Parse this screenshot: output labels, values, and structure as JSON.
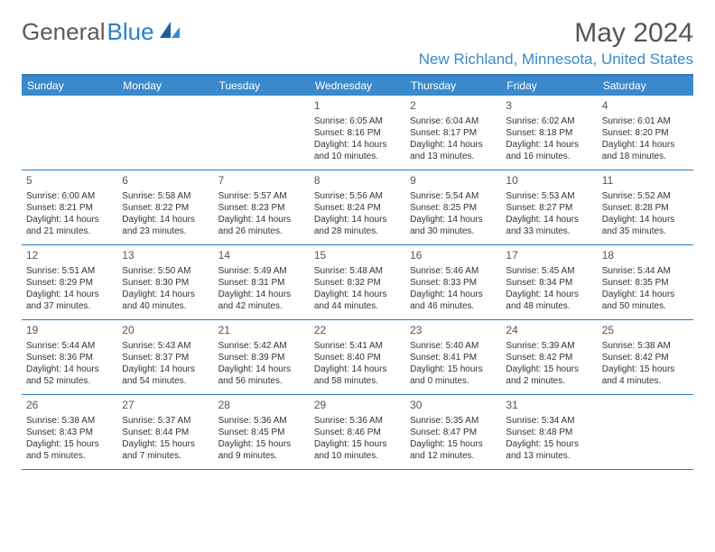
{
  "logo": {
    "part1": "General",
    "part2": "Blue"
  },
  "title": "May 2024",
  "location": "New Richland, Minnesota, United States",
  "colors": {
    "header_bg": "#3a8acb",
    "border": "#2f7cbf",
    "location_text": "#3a8acb",
    "title_text": "#555555",
    "body_text": "#333333",
    "background": "#ffffff"
  },
  "day_headers": [
    "Sunday",
    "Monday",
    "Tuesday",
    "Wednesday",
    "Thursday",
    "Friday",
    "Saturday"
  ],
  "weeks": [
    [
      {
        "day": "",
        "lines": []
      },
      {
        "day": "",
        "lines": []
      },
      {
        "day": "",
        "lines": []
      },
      {
        "day": "1",
        "lines": [
          "Sunrise: 6:05 AM",
          "Sunset: 8:16 PM",
          "Daylight: 14 hours and 10 minutes."
        ]
      },
      {
        "day": "2",
        "lines": [
          "Sunrise: 6:04 AM",
          "Sunset: 8:17 PM",
          "Daylight: 14 hours and 13 minutes."
        ]
      },
      {
        "day": "3",
        "lines": [
          "Sunrise: 6:02 AM",
          "Sunset: 8:18 PM",
          "Daylight: 14 hours and 16 minutes."
        ]
      },
      {
        "day": "4",
        "lines": [
          "Sunrise: 6:01 AM",
          "Sunset: 8:20 PM",
          "Daylight: 14 hours and 18 minutes."
        ]
      }
    ],
    [
      {
        "day": "5",
        "lines": [
          "Sunrise: 6:00 AM",
          "Sunset: 8:21 PM",
          "Daylight: 14 hours and 21 minutes."
        ]
      },
      {
        "day": "6",
        "lines": [
          "Sunrise: 5:58 AM",
          "Sunset: 8:22 PM",
          "Daylight: 14 hours and 23 minutes."
        ]
      },
      {
        "day": "7",
        "lines": [
          "Sunrise: 5:57 AM",
          "Sunset: 8:23 PM",
          "Daylight: 14 hours and 26 minutes."
        ]
      },
      {
        "day": "8",
        "lines": [
          "Sunrise: 5:56 AM",
          "Sunset: 8:24 PM",
          "Daylight: 14 hours and 28 minutes."
        ]
      },
      {
        "day": "9",
        "lines": [
          "Sunrise: 5:54 AM",
          "Sunset: 8:25 PM",
          "Daylight: 14 hours and 30 minutes."
        ]
      },
      {
        "day": "10",
        "lines": [
          "Sunrise: 5:53 AM",
          "Sunset: 8:27 PM",
          "Daylight: 14 hours and 33 minutes."
        ]
      },
      {
        "day": "11",
        "lines": [
          "Sunrise: 5:52 AM",
          "Sunset: 8:28 PM",
          "Daylight: 14 hours and 35 minutes."
        ]
      }
    ],
    [
      {
        "day": "12",
        "lines": [
          "Sunrise: 5:51 AM",
          "Sunset: 8:29 PM",
          "Daylight: 14 hours and 37 minutes."
        ]
      },
      {
        "day": "13",
        "lines": [
          "Sunrise: 5:50 AM",
          "Sunset: 8:30 PM",
          "Daylight: 14 hours and 40 minutes."
        ]
      },
      {
        "day": "14",
        "lines": [
          "Sunrise: 5:49 AM",
          "Sunset: 8:31 PM",
          "Daylight: 14 hours and 42 minutes."
        ]
      },
      {
        "day": "15",
        "lines": [
          "Sunrise: 5:48 AM",
          "Sunset: 8:32 PM",
          "Daylight: 14 hours and 44 minutes."
        ]
      },
      {
        "day": "16",
        "lines": [
          "Sunrise: 5:46 AM",
          "Sunset: 8:33 PM",
          "Daylight: 14 hours and 46 minutes."
        ]
      },
      {
        "day": "17",
        "lines": [
          "Sunrise: 5:45 AM",
          "Sunset: 8:34 PM",
          "Daylight: 14 hours and 48 minutes."
        ]
      },
      {
        "day": "18",
        "lines": [
          "Sunrise: 5:44 AM",
          "Sunset: 8:35 PM",
          "Daylight: 14 hours and 50 minutes."
        ]
      }
    ],
    [
      {
        "day": "19",
        "lines": [
          "Sunrise: 5:44 AM",
          "Sunset: 8:36 PM",
          "Daylight: 14 hours and 52 minutes."
        ]
      },
      {
        "day": "20",
        "lines": [
          "Sunrise: 5:43 AM",
          "Sunset: 8:37 PM",
          "Daylight: 14 hours and 54 minutes."
        ]
      },
      {
        "day": "21",
        "lines": [
          "Sunrise: 5:42 AM",
          "Sunset: 8:39 PM",
          "Daylight: 14 hours and 56 minutes."
        ]
      },
      {
        "day": "22",
        "lines": [
          "Sunrise: 5:41 AM",
          "Sunset: 8:40 PM",
          "Daylight: 14 hours and 58 minutes."
        ]
      },
      {
        "day": "23",
        "lines": [
          "Sunrise: 5:40 AM",
          "Sunset: 8:41 PM",
          "Daylight: 15 hours and 0 minutes."
        ]
      },
      {
        "day": "24",
        "lines": [
          "Sunrise: 5:39 AM",
          "Sunset: 8:42 PM",
          "Daylight: 15 hours and 2 minutes."
        ]
      },
      {
        "day": "25",
        "lines": [
          "Sunrise: 5:38 AM",
          "Sunset: 8:42 PM",
          "Daylight: 15 hours and 4 minutes."
        ]
      }
    ],
    [
      {
        "day": "26",
        "lines": [
          "Sunrise: 5:38 AM",
          "Sunset: 8:43 PM",
          "Daylight: 15 hours and 5 minutes."
        ]
      },
      {
        "day": "27",
        "lines": [
          "Sunrise: 5:37 AM",
          "Sunset: 8:44 PM",
          "Daylight: 15 hours and 7 minutes."
        ]
      },
      {
        "day": "28",
        "lines": [
          "Sunrise: 5:36 AM",
          "Sunset: 8:45 PM",
          "Daylight: 15 hours and 9 minutes."
        ]
      },
      {
        "day": "29",
        "lines": [
          "Sunrise: 5:36 AM",
          "Sunset: 8:46 PM",
          "Daylight: 15 hours and 10 minutes."
        ]
      },
      {
        "day": "30",
        "lines": [
          "Sunrise: 5:35 AM",
          "Sunset: 8:47 PM",
          "Daylight: 15 hours and 12 minutes."
        ]
      },
      {
        "day": "31",
        "lines": [
          "Sunrise: 5:34 AM",
          "Sunset: 8:48 PM",
          "Daylight: 15 hours and 13 minutes."
        ]
      },
      {
        "day": "",
        "lines": []
      }
    ]
  ]
}
